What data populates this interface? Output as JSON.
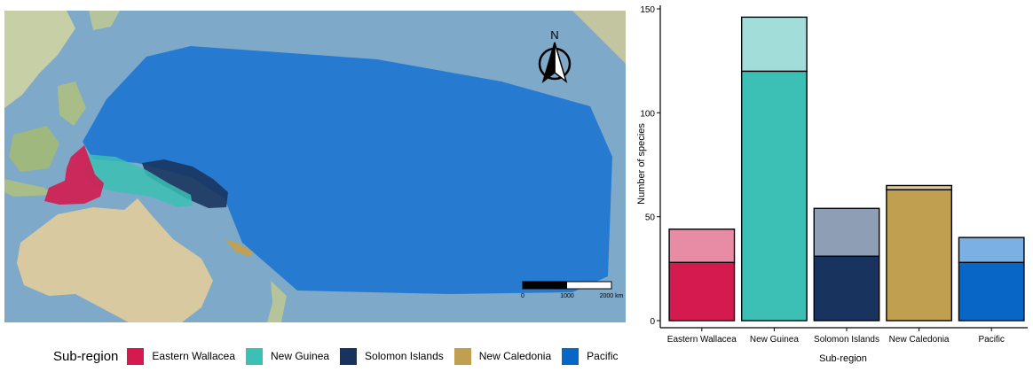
{
  "map": {
    "north_label": "N",
    "scale_bar": {
      "ticks": [
        "0",
        "1000",
        "2000 km"
      ]
    }
  },
  "legend": {
    "title": "Sub-region",
    "items": [
      {
        "label": "Eastern Wallacea",
        "color": "#D41A4F"
      },
      {
        "label": "New Guinea",
        "color": "#3CBFB4"
      },
      {
        "label": "Solomon Islands",
        "color": "#17335E"
      },
      {
        "label": "New Caledonia",
        "color": "#C0A050"
      },
      {
        "label": "Pacific",
        "color": "#0866C6"
      }
    ]
  },
  "chart_data": {
    "type": "bar",
    "stacked": true,
    "categories": [
      "Eastern Wallacea",
      "New Guinea",
      "Solomon Islands",
      "New Caledonia",
      "Pacific"
    ],
    "series": [
      {
        "values": [
          28,
          120,
          31,
          63,
          28
        ],
        "colors": [
          "#D41A4F",
          "#3CBFB4",
          "#17335E",
          "#C0A050",
          "#0866C6"
        ]
      },
      {
        "values": [
          16,
          26,
          23,
          2,
          12
        ],
        "colors": [
          "#E88BA5",
          "#A3DDDA",
          "#8E9EB5",
          "#DACBA3",
          "#7BB0E4"
        ]
      }
    ],
    "xlabel": "Sub-region",
    "ylabel": "Number of species",
    "ylim": [
      0,
      150
    ],
    "yticks": [
      0,
      50,
      100,
      150
    ],
    "grid": false,
    "legend": "none"
  }
}
